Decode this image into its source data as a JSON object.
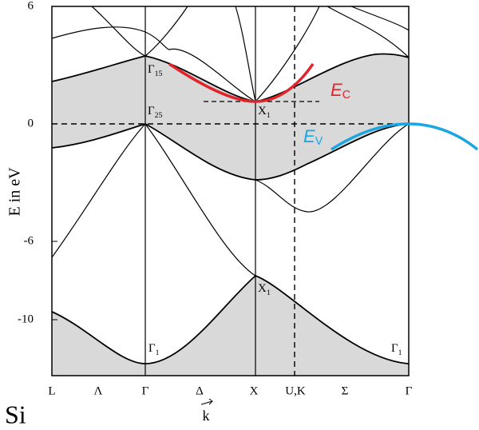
{
  "axis": {
    "y_label": "E in eV",
    "k_label": "k",
    "yticks": [
      6,
      0,
      -6,
      -10
    ],
    "k_points": [
      "L",
      "Λ",
      "Γ",
      "Δ",
      "X",
      "U,K",
      "Σ",
      "Γ"
    ]
  },
  "material": "Si",
  "point_labels": [
    {
      "symbol": "Γ",
      "subscript": "15"
    },
    {
      "symbol": "Γ",
      "subscript": "25"
    },
    {
      "symbol": "X",
      "subscript": "1"
    },
    {
      "symbol": "X",
      "subscript": "1"
    },
    {
      "symbol": "Γ",
      "subscript": "1"
    },
    {
      "symbol": "Γ",
      "subscript": "1"
    }
  ],
  "E_c": {
    "symbol": "E",
    "subscript": "C"
  },
  "E_v": {
    "symbol": "E",
    "subscript": "V"
  }
}
